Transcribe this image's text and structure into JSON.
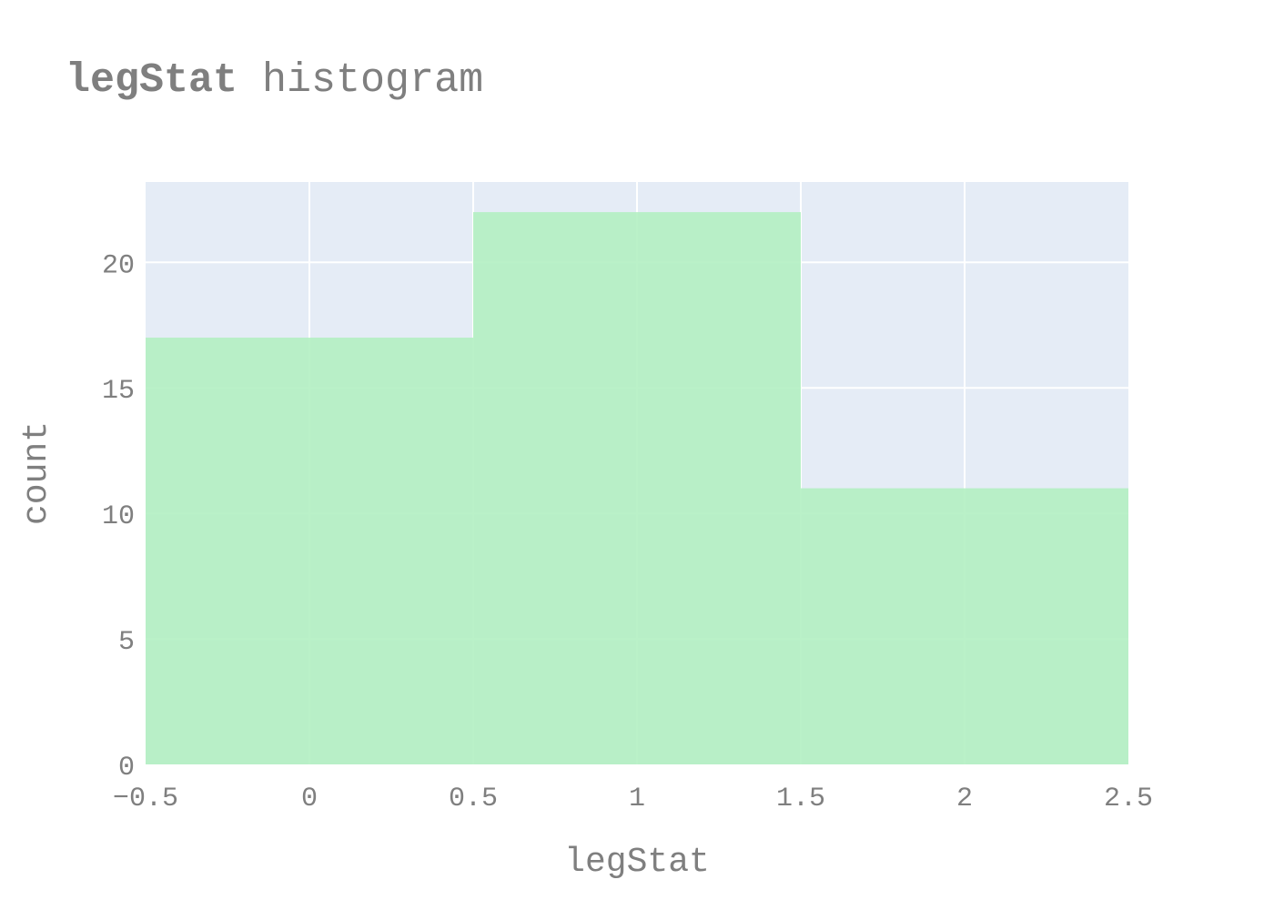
{
  "chart_data": {
    "type": "bar",
    "subtype": "histogram",
    "title_bold": "legStat",
    "title_rest": " histogram",
    "xlabel": "legStat",
    "ylabel": "count",
    "bins": [
      {
        "start": -0.5,
        "end": 0.5,
        "count": 17
      },
      {
        "start": 0.5,
        "end": 1.5,
        "count": 22
      },
      {
        "start": 1.5,
        "end": 2.5,
        "count": 11
      }
    ],
    "xlim": [
      -0.5,
      2.5
    ],
    "ylim": [
      0,
      23.2
    ],
    "x_ticks": [
      {
        "value": -0.5,
        "label": "−0.5"
      },
      {
        "value": 0,
        "label": "0"
      },
      {
        "value": 0.5,
        "label": "0.5"
      },
      {
        "value": 1,
        "label": "1"
      },
      {
        "value": 1.5,
        "label": "1.5"
      },
      {
        "value": 2,
        "label": "2"
      },
      {
        "value": 2.5,
        "label": "2.5"
      }
    ],
    "y_ticks": [
      {
        "value": 0,
        "label": "0"
      },
      {
        "value": 5,
        "label": "5"
      },
      {
        "value": 10,
        "label": "10"
      },
      {
        "value": 15,
        "label": "15"
      },
      {
        "value": 20,
        "label": "20"
      }
    ],
    "grid": true,
    "legend": "none",
    "colors": {
      "plot_bg": "#e5ecf6",
      "grid": "#ffffff",
      "bar_fill": "#b3f0c2",
      "bar_opacity": 0.9,
      "text": "#7f7f7f"
    }
  }
}
